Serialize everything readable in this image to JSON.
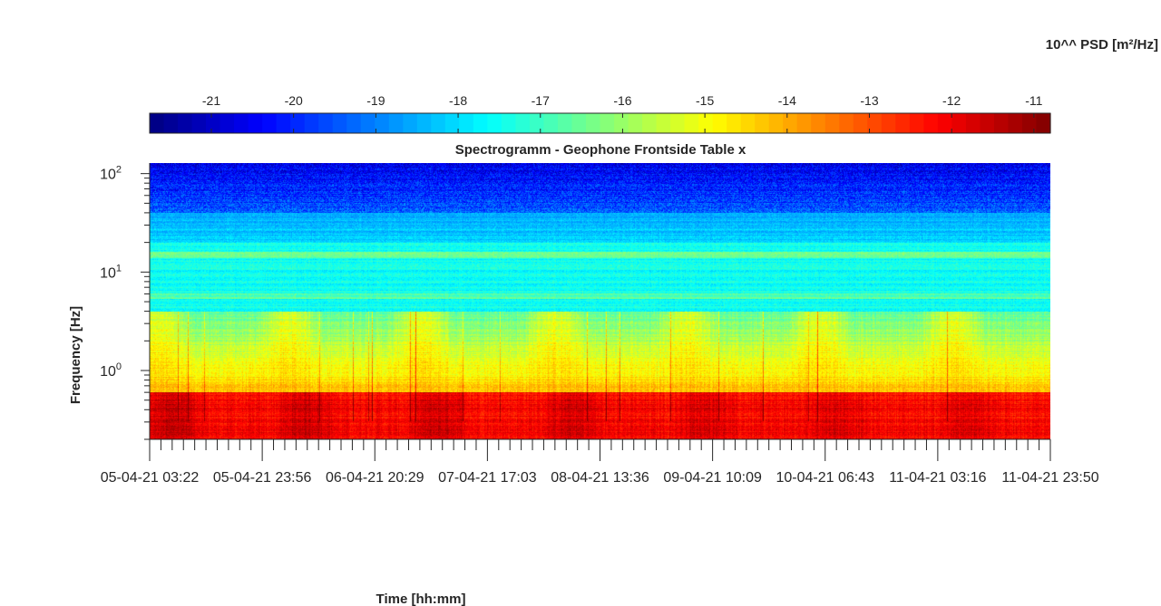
{
  "chart_data": {
    "type": "heatmap",
    "title": "Spectrogramm - Geophone Frontside Table x",
    "xlabel": "Time [hh:mm]",
    "ylabel": "Frequency [Hz]",
    "y_scale": "log",
    "ylim": [
      0.2,
      128
    ],
    "y_ticks": [
      {
        "base": "10",
        "exp": "0",
        "value": 1
      },
      {
        "base": "10",
        "exp": "1",
        "value": 10
      },
      {
        "base": "10",
        "exp": "2",
        "value": 100
      }
    ],
    "x_ticks": [
      "05-04-21 03:22",
      "05-04-21 23:56",
      "06-04-21 20:29",
      "07-04-21 17:03",
      "08-04-21 13:36",
      "09-04-21 10:09",
      "10-04-21 06:43",
      "11-04-21 03:16",
      "11-04-21 23:50"
    ],
    "colorbar": {
      "label": "10^^ PSD [m²/Hz]",
      "ticks": [
        "-21",
        "-20",
        "-19",
        "-18",
        "-17",
        "-16",
        "-15",
        "-14",
        "-13",
        "-12",
        "-11"
      ],
      "range": [
        -21.75,
        -10.8
      ],
      "colormap": "jet",
      "location": "top"
    },
    "z_description_levels": {
      "above_40Hz": -20.5,
      "20_to_40Hz": -18.5,
      "4_to_20Hz": -17.5,
      "1_to_4Hz": -15.5,
      "below_0.6Hz": -12.5
    }
  }
}
